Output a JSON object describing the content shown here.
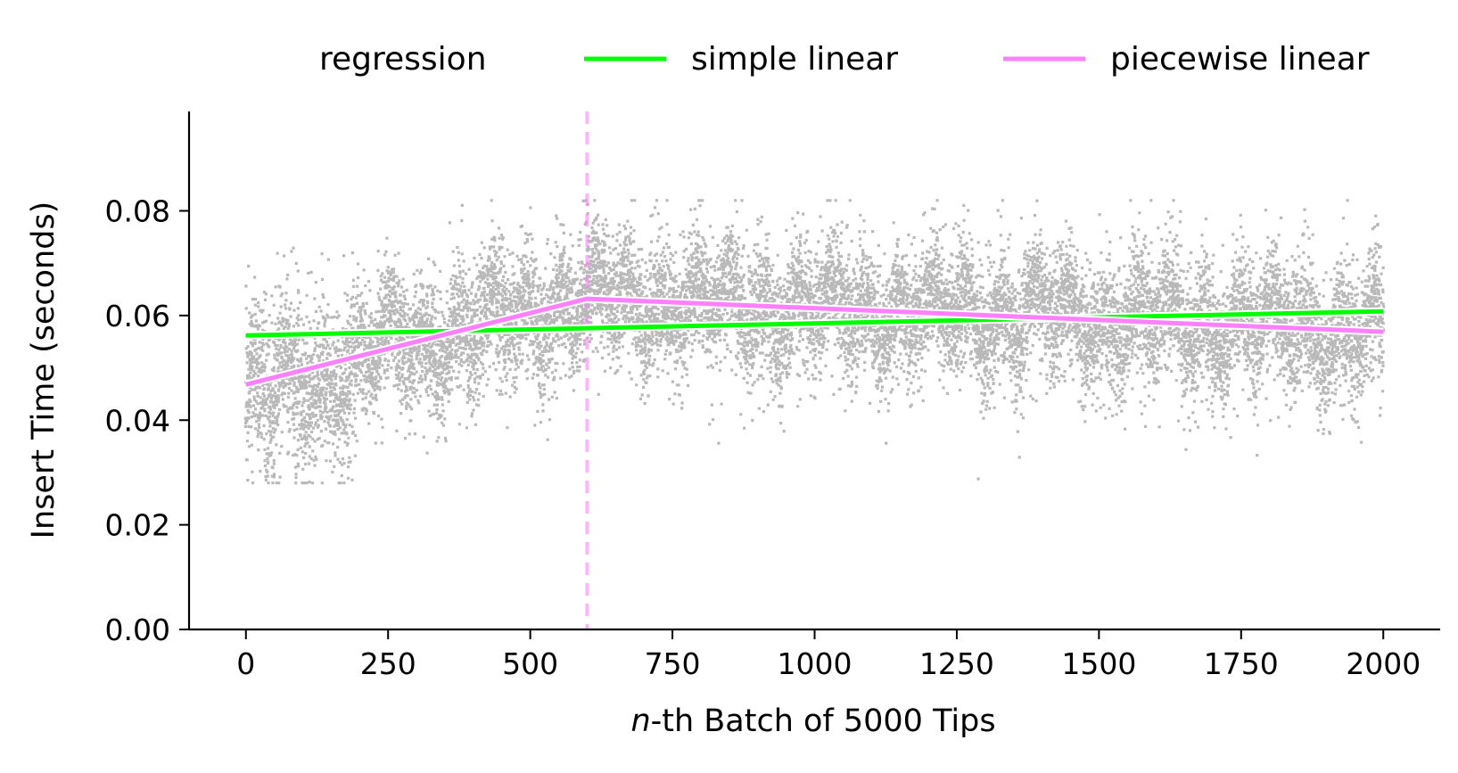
{
  "chart_data": {
    "type": "scatter",
    "title": "",
    "xlabel_italic": "n",
    "xlabel_rest": "-th Batch of 5000 Tips",
    "ylabel": "Insert Time (seconds)",
    "xlim": [
      -100,
      2100
    ],
    "ylim": [
      0.0,
      0.099
    ],
    "xticks": [
      0,
      250,
      500,
      750,
      1000,
      1250,
      1500,
      1750,
      2000
    ],
    "xtick_labels": [
      "0",
      "250",
      "500",
      "750",
      "1000",
      "1250",
      "1500",
      "1750",
      "2000"
    ],
    "yticks": [
      0.0,
      0.02,
      0.04,
      0.06,
      0.08
    ],
    "ytick_labels": [
      "0.00",
      "0.02",
      "0.04",
      "0.06",
      "0.08"
    ],
    "legend": {
      "title": "regression",
      "position": "top",
      "entries": [
        {
          "label": "simple linear",
          "color": "#00ff00"
        },
        {
          "label": "piecewise linear",
          "color": "#ff80ff"
        }
      ]
    },
    "scatter": {
      "color": "#808080",
      "x_range": [
        0,
        2000
      ],
      "approx_mean": 0.058,
      "approx_spread_range": [
        0.03,
        0.082
      ]
    },
    "series": [
      {
        "name": "simple linear",
        "color": "#00ff00",
        "x": [
          0,
          2000
        ],
        "y": [
          0.0562,
          0.0608
        ]
      },
      {
        "name": "piecewise linear",
        "color": "#ff80ff",
        "x": [
          0,
          600,
          2000
        ],
        "y": [
          0.0468,
          0.0632,
          0.0569
        ]
      }
    ],
    "breakpoint": {
      "x": 600,
      "color": "#ff80ff",
      "style": "dashed"
    }
  }
}
